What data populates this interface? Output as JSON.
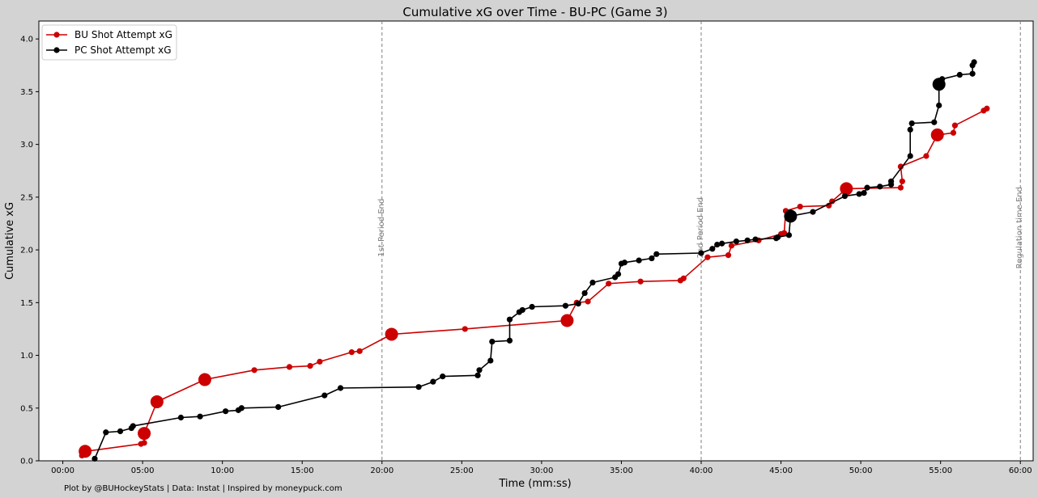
{
  "chart_data": {
    "type": "line",
    "title": "Cumulative xG over Time - BU-PC (Game 3)",
    "xlabel": "Time (mm:ss)",
    "ylabel": "Cumulative xG",
    "xlim": [
      -1.5,
      60.8
    ],
    "ylim": [
      0,
      4.17
    ],
    "x_ticks": [
      0,
      5,
      10,
      15,
      20,
      25,
      30,
      35,
      40,
      45,
      50,
      55,
      60
    ],
    "x_tick_labels": [
      "00:00",
      "05:00",
      "10:00",
      "15:00",
      "20:00",
      "25:00",
      "30:00",
      "35:00",
      "40:00",
      "45:00",
      "50:00",
      "55:00",
      "60:00"
    ],
    "y_ticks": [
      0,
      0.5,
      1.0,
      1.5,
      2.0,
      2.5,
      3.0,
      3.5,
      4.0
    ],
    "y_tick_labels": [
      "0.0",
      "0.5",
      "1.0",
      "1.5",
      "2.0",
      "2.5",
      "3.0",
      "3.5",
      "4.0"
    ],
    "grid": false,
    "legend_position": "top-left",
    "period_markers": [
      {
        "x": 20,
        "label": "1st Period End"
      },
      {
        "x": 40,
        "label": "2nd Period End"
      },
      {
        "x": 60,
        "label": "Regulation time End"
      }
    ],
    "series": [
      {
        "name": "BU Shot Attempt xG",
        "color": "#cc0000",
        "points": [
          [
            1.2,
            0.05
          ],
          [
            1.4,
            0.09
          ],
          [
            4.9,
            0.16
          ],
          [
            5.1,
            0.17
          ],
          [
            5.1,
            0.26
          ],
          [
            5.9,
            0.56
          ],
          [
            8.9,
            0.77
          ],
          [
            12.0,
            0.86
          ],
          [
            14.2,
            0.89
          ],
          [
            15.5,
            0.9
          ],
          [
            16.1,
            0.94
          ],
          [
            18.1,
            1.03
          ],
          [
            18.6,
            1.04
          ],
          [
            20.6,
            1.2
          ],
          [
            25.2,
            1.25
          ],
          [
            31.6,
            1.33
          ],
          [
            32.2,
            1.5
          ],
          [
            32.9,
            1.51
          ],
          [
            34.2,
            1.68
          ],
          [
            36.2,
            1.7
          ],
          [
            38.7,
            1.71
          ],
          [
            38.9,
            1.73
          ],
          [
            40.4,
            1.93
          ],
          [
            41.7,
            1.95
          ],
          [
            41.9,
            2.04
          ],
          [
            43.6,
            2.09
          ],
          [
            45.0,
            2.15
          ],
          [
            45.2,
            2.16
          ],
          [
            45.3,
            2.37
          ],
          [
            46.2,
            2.41
          ],
          [
            48.0,
            2.42
          ],
          [
            48.2,
            2.46
          ],
          [
            49.1,
            2.58
          ],
          [
            52.5,
            2.59
          ],
          [
            52.6,
            2.65
          ],
          [
            52.5,
            2.79
          ],
          [
            54.1,
            2.89
          ],
          [
            54.8,
            3.09
          ],
          [
            55.8,
            3.11
          ],
          [
            55.9,
            3.18
          ],
          [
            57.7,
            3.32
          ],
          [
            57.9,
            3.34
          ]
        ],
        "large_markers": [
          [
            1.4,
            0.09
          ],
          [
            5.1,
            0.26
          ],
          [
            5.9,
            0.56
          ],
          [
            8.9,
            0.77
          ],
          [
            20.6,
            1.2
          ],
          [
            31.6,
            1.33
          ],
          [
            49.1,
            2.58
          ],
          [
            54.8,
            3.09
          ]
        ]
      },
      {
        "name": "PC Shot Attempt xG",
        "color": "#000000",
        "points": [
          [
            2.0,
            0.02
          ],
          [
            2.7,
            0.27
          ],
          [
            3.6,
            0.28
          ],
          [
            4.3,
            0.31
          ],
          [
            4.4,
            0.33
          ],
          [
            7.4,
            0.41
          ],
          [
            8.6,
            0.42
          ],
          [
            10.2,
            0.47
          ],
          [
            11.0,
            0.48
          ],
          [
            11.2,
            0.5
          ],
          [
            13.5,
            0.51
          ],
          [
            16.4,
            0.62
          ],
          [
            17.4,
            0.69
          ],
          [
            22.3,
            0.7
          ],
          [
            23.2,
            0.75
          ],
          [
            23.8,
            0.8
          ],
          [
            26.0,
            0.81
          ],
          [
            26.1,
            0.86
          ],
          [
            26.8,
            0.95
          ],
          [
            26.9,
            1.13
          ],
          [
            28.0,
            1.14
          ],
          [
            28.0,
            1.34
          ],
          [
            28.6,
            1.41
          ],
          [
            28.8,
            1.43
          ],
          [
            29.4,
            1.46
          ],
          [
            31.5,
            1.47
          ],
          [
            32.3,
            1.49
          ],
          [
            32.7,
            1.59
          ],
          [
            33.2,
            1.69
          ],
          [
            34.6,
            1.74
          ],
          [
            34.8,
            1.77
          ],
          [
            35.0,
            1.87
          ],
          [
            35.2,
            1.88
          ],
          [
            36.1,
            1.9
          ],
          [
            36.9,
            1.92
          ],
          [
            37.2,
            1.96
          ],
          [
            40.0,
            1.97
          ],
          [
            40.7,
            2.01
          ],
          [
            41.0,
            2.05
          ],
          [
            41.3,
            2.06
          ],
          [
            42.2,
            2.08
          ],
          [
            42.9,
            2.09
          ],
          [
            43.4,
            2.1
          ],
          [
            44.7,
            2.11
          ],
          [
            44.8,
            2.12
          ],
          [
            45.5,
            2.14
          ],
          [
            45.6,
            2.32
          ],
          [
            47.0,
            2.36
          ],
          [
            49.0,
            2.51
          ],
          [
            49.9,
            2.53
          ],
          [
            50.2,
            2.54
          ],
          [
            50.4,
            2.59
          ],
          [
            51.2,
            2.6
          ],
          [
            51.9,
            2.62
          ],
          [
            51.9,
            2.65
          ],
          [
            53.1,
            2.89
          ],
          [
            53.1,
            3.14
          ],
          [
            53.2,
            3.2
          ],
          [
            54.6,
            3.21
          ],
          [
            54.9,
            3.37
          ],
          [
            54.9,
            3.57
          ],
          [
            55.1,
            3.62
          ],
          [
            56.2,
            3.66
          ],
          [
            57.0,
            3.67
          ],
          [
            57.0,
            3.75
          ],
          [
            57.1,
            3.78
          ]
        ],
        "large_markers": [
          [
            45.6,
            2.32
          ],
          [
            54.9,
            3.57
          ]
        ]
      }
    ],
    "footer_note": "Plot by @BUHockeyStats | Data: Instat | Inspired by moneypuck.com"
  }
}
